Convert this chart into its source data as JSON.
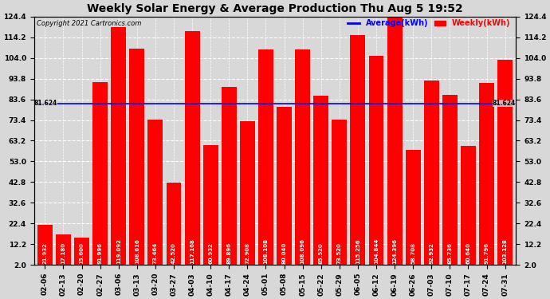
{
  "title": "Weekly Solar Energy & Average Production Thu Aug 5 19:52",
  "copyright": "Copyright 2021 Cartronics.com",
  "categories": [
    "02-06",
    "02-13",
    "02-20",
    "02-27",
    "03-06",
    "03-13",
    "03-20",
    "03-27",
    "04-03",
    "04-10",
    "04-17",
    "04-24",
    "05-01",
    "05-08",
    "05-15",
    "05-22",
    "05-29",
    "06-05",
    "06-12",
    "06-19",
    "06-26",
    "07-03",
    "07-10",
    "07-17",
    "07-24",
    "07-31"
  ],
  "values": [
    21.932,
    17.18,
    15.6,
    91.996,
    119.092,
    108.616,
    73.464,
    42.52,
    117.168,
    60.932,
    89.896,
    72.908,
    108.108,
    80.04,
    108.096,
    85.52,
    73.52,
    115.256,
    104.844,
    124.396,
    58.708,
    92.932,
    85.736,
    60.64,
    91.796,
    103.128
  ],
  "average": 81.624,
  "bar_color": "#ff0000",
  "avg_line_color": "#0000ff",
  "ylim_min": 2.0,
  "ylim_max": 124.4,
  "yticks": [
    2.0,
    12.2,
    22.4,
    32.6,
    42.8,
    53.0,
    63.2,
    73.4,
    83.6,
    93.8,
    104.0,
    114.2,
    124.4
  ],
  "avg_label": "Average(kWh)",
  "weekly_label": "Weekly(kWh)",
  "background_color": "#d8d8d8",
  "grid_color": "#ffffff",
  "bar_label_fontsize": 5.0,
  "title_fontsize": 10,
  "tick_fontsize": 6.5,
  "copyright_fontsize": 6.0
}
